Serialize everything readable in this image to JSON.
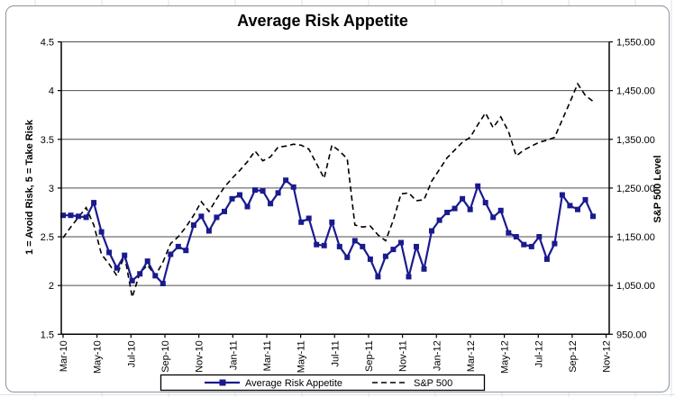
{
  "chart": {
    "title": "Average Risk Appetite",
    "left_axis_title": "1 = Avoid Risk, 5 = Take Risk",
    "right_axis_title": "S&P 500 Level",
    "colors": {
      "risk_line": "#1a1a8f",
      "sp500_line": "#000000",
      "gridline": "#4d4d4d",
      "axis": "#000000",
      "frame_border": "#9aa0a6",
      "sheet_gridline": "#dce1ea",
      "text": "#000000"
    }
  },
  "chart_data": {
    "type": "line",
    "title": "Average Risk Appetite",
    "grid": true,
    "legend_position": "bottom",
    "x_tick_labels": [
      "Mar-10",
      "May-10",
      "Jul-10",
      "Sep-10",
      "Nov-10",
      "Jan-11",
      "Mar-11",
      "May-11",
      "Jul-11",
      "Sep-11",
      "Nov-11",
      "Jan-12",
      "Mar-12",
      "May-12",
      "Jul-12",
      "Sep-12",
      "Nov-12"
    ],
    "left_axis": {
      "label": "1 = Avoid Risk, 5 = Take Risk",
      "min": 1.5,
      "max": 4.5,
      "tick_step": 0.5,
      "tick_labels": [
        "1.5",
        "2",
        "2.5",
        "3",
        "3.5",
        "4",
        "4.5"
      ]
    },
    "right_axis": {
      "label": "S&P 500 Level",
      "min": 950,
      "max": 1550,
      "tick_step": 100,
      "tick_labels": [
        "950.00",
        "1,050.00",
        "1,150.00",
        "1,250.00",
        "1,350.00",
        "1,450.00",
        "1,550.00"
      ]
    },
    "series": [
      {
        "name": "Average Risk Appetite",
        "axis": "left",
        "style": "solid",
        "marker": "square",
        "color": "#1a1a8f",
        "values": [
          2.72,
          2.72,
          2.71,
          2.7,
          2.85,
          2.55,
          2.34,
          2.18,
          2.31,
          2.05,
          2.12,
          2.25,
          2.1,
          2.02,
          2.32,
          2.4,
          2.36,
          2.62,
          2.71,
          2.56,
          2.7,
          2.76,
          2.89,
          2.93,
          2.81,
          2.98,
          2.97,
          2.84,
          2.95,
          3.08,
          3.01,
          2.65,
          2.69,
          2.42,
          2.41,
          2.65,
          2.4,
          2.29,
          2.46,
          2.4,
          2.27,
          2.09,
          2.3,
          2.37,
          2.44,
          2.09,
          2.4,
          2.17,
          2.56,
          2.67,
          2.75,
          2.79,
          2.89,
          2.78,
          3.02,
          2.85,
          2.7,
          2.77,
          2.54,
          2.5,
          2.42,
          2.4,
          2.5,
          2.27,
          2.43,
          2.93,
          2.82,
          2.78,
          2.88,
          2.71
        ]
      },
      {
        "name": "S&P 500",
        "axis": "right",
        "style": "dashed",
        "marker": "none",
        "color": "#000000",
        "values": [
          1148,
          1170,
          1190,
          1210,
          1174,
          1114,
          1094,
          1070,
          1112,
          1026,
          1076,
          1092,
          1070,
          1098,
          1136,
          1150,
          1170,
          1194,
          1222,
          1202,
          1228,
          1252,
          1270,
          1286,
          1304,
          1326,
          1306,
          1314,
          1334,
          1336,
          1340,
          1338,
          1330,
          1300,
          1270,
          1338,
          1326,
          1310,
          1174,
          1170,
          1172,
          1154,
          1142,
          1184,
          1238,
          1240,
          1224,
          1226,
          1264,
          1288,
          1312,
          1328,
          1344,
          1354,
          1380,
          1404,
          1374,
          1396,
          1366,
          1316,
          1328,
          1336,
          1344,
          1348,
          1354,
          1390,
          1426,
          1464,
          1440,
          1428
        ]
      }
    ]
  }
}
